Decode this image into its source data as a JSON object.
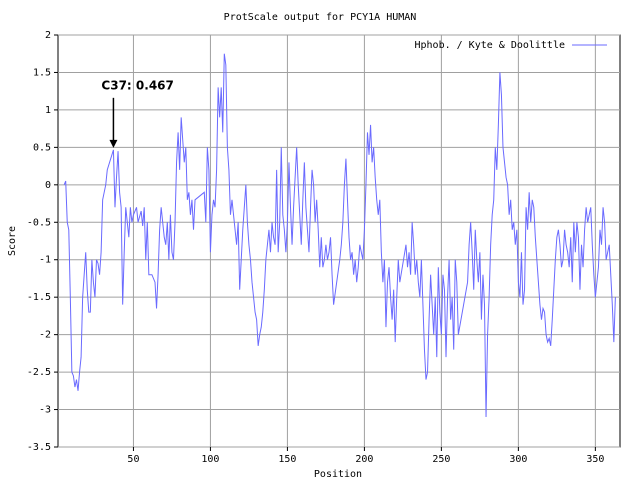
{
  "chart_data": {
    "type": "line",
    "title": "ProtScale output for PCY1A HUMAN",
    "xlabel": "Position",
    "ylabel": "Score",
    "xlim": [
      1,
      366
    ],
    "xticks": [
      50,
      100,
      150,
      200,
      250,
      300,
      350
    ],
    "ylim": [
      -3.5,
      2
    ],
    "yticks": [
      -3.5,
      -3,
      -2.5,
      -2,
      -1.5,
      -1,
      -0.5,
      0,
      0.5,
      1,
      1.5,
      2
    ],
    "grid": true,
    "legend": "top-right",
    "annotation": {
      "text": "C37: 0.467",
      "x": 37,
      "y": 0.467
    },
    "x": [
      5,
      6,
      7,
      8,
      9,
      10,
      11,
      12,
      13,
      14,
      15,
      16,
      17,
      18,
      19,
      20,
      21,
      22,
      23,
      24,
      25,
      26,
      27,
      28,
      29,
      30,
      31,
      32,
      33,
      37,
      38,
      39,
      40,
      41,
      42,
      43,
      44,
      45,
      46,
      47,
      48,
      49,
      50,
      52,
      53,
      55,
      56,
      57,
      58,
      59,
      60,
      62,
      64,
      65,
      66,
      67,
      68,
      69,
      70,
      71,
      72,
      73,
      74,
      75,
      76,
      77,
      78,
      79,
      80,
      81,
      82,
      83,
      84,
      85,
      86,
      87,
      88,
      89,
      90,
      96,
      97,
      98,
      99,
      100,
      101,
      102,
      103,
      104,
      105,
      106,
      107,
      108,
      109,
      110,
      111,
      112,
      113,
      114,
      115,
      116,
      117,
      118,
      119,
      120,
      121,
      122,
      123,
      124,
      125,
      126,
      127,
      128,
      129,
      130,
      131,
      132,
      133,
      134,
      135,
      136,
      137,
      138,
      139,
      140,
      141,
      142,
      143,
      144,
      145,
      146,
      147,
      148,
      149,
      150,
      151,
      152,
      153,
      154,
      155,
      156,
      157,
      158,
      159,
      160,
      161,
      162,
      163,
      164,
      165,
      166,
      167,
      168,
      169,
      170,
      171,
      172,
      173,
      174,
      175,
      176,
      177,
      178,
      179,
      180,
      184,
      185,
      186,
      187,
      188,
      189,
      190,
      191,
      192,
      193,
      194,
      195,
      196,
      197,
      198,
      199,
      200,
      201,
      202,
      203,
      204,
      205,
      206,
      207,
      208,
      209,
      210,
      211,
      212,
      213,
      214,
      215,
      216,
      217,
      218,
      219,
      220,
      221,
      222,
      223,
      227,
      228,
      229,
      230,
      231,
      232,
      233,
      234,
      235,
      236,
      237,
      238,
      239,
      240,
      241,
      242,
      243,
      244,
      245,
      246,
      247,
      248,
      249,
      250,
      251,
      252,
      253,
      254,
      255,
      256,
      257,
      258,
      259,
      260,
      261,
      267,
      268,
      269,
      270,
      271,
      272,
      273,
      274,
      275,
      276,
      277,
      278,
      279,
      280,
      281,
      282,
      283,
      284,
      285,
      286,
      287,
      288,
      289,
      290,
      291,
      292,
      293,
      294,
      295,
      296,
      297,
      298,
      299,
      300,
      301,
      302,
      303,
      304,
      305,
      306,
      307,
      308,
      309,
      310,
      311,
      312,
      313,
      314,
      315,
      316,
      317,
      318,
      319,
      320,
      321,
      322,
      323,
      324,
      325,
      326,
      327,
      328,
      329,
      330,
      331,
      332,
      333,
      334,
      335,
      336,
      337,
      338,
      339,
      340,
      341,
      342,
      343,
      344,
      345,
      346,
      347,
      348,
      349,
      350,
      351,
      352,
      353,
      354,
      355,
      356,
      357,
      358,
      359,
      360,
      361,
      362,
      363
    ],
    "series": [
      {
        "name": "Hphob. / Kyte & Doolittle",
        "color": "#6a6aff",
        "values": [
          0,
          0.05,
          -0.5,
          -0.6,
          -1.5,
          -2.5,
          -2.55,
          -2.7,
          -2.6,
          -2.75,
          -2.5,
          -2.3,
          -1.5,
          -1.2,
          -0.9,
          -1.4,
          -1.7,
          -1.7,
          -1,
          -1.3,
          -1.5,
          -1,
          -1.05,
          -1.2,
          -0.9,
          -0.2,
          -0.1,
          0,
          0.2,
          0.467,
          -0.3,
          0.1,
          0.45,
          -0.1,
          -0.3,
          -1.6,
          -0.9,
          -0.3,
          -0.5,
          -0.7,
          -0.3,
          -0.5,
          -0.4,
          -0.3,
          -0.5,
          -0.35,
          -0.55,
          -0.3,
          -1,
          -0.5,
          -1.2,
          -1.2,
          -1.3,
          -1.65,
          -1.2,
          -0.6,
          -0.3,
          -0.5,
          -0.7,
          -0.8,
          -0.5,
          -1,
          -0.4,
          -0.9,
          -1,
          -0.5,
          0.3,
          0.7,
          0.2,
          0.9,
          0.6,
          0.3,
          0.5,
          -0.2,
          -0.1,
          -0.4,
          -0.2,
          -0.6,
          -0.2,
          -0.1,
          -0.5,
          0.5,
          0.2,
          -0.9,
          -0.4,
          -0.2,
          -0.3,
          0.2,
          1.3,
          0.9,
          1.3,
          0.7,
          1.75,
          1.6,
          0.5,
          0.2,
          -0.4,
          -0.2,
          -0.4,
          -0.6,
          -0.8,
          -0.5,
          -1.4,
          -1,
          -0.6,
          -0.3,
          0,
          -0.5,
          -0.8,
          -1,
          -1.3,
          -1.5,
          -1.7,
          -1.8,
          -2.15,
          -2,
          -1.9,
          -1.7,
          -1.4,
          -1,
          -0.8,
          -0.6,
          -0.9,
          -0.5,
          -0.7,
          -0.8,
          0.2,
          -0.9,
          -0.5,
          0.5,
          -0.4,
          -0.6,
          -0.9,
          -0.5,
          0.3,
          -0.3,
          -0.8,
          -0.3,
          0.1,
          0.5,
          0,
          -0.4,
          -0.8,
          -0.2,
          0.3,
          -0.3,
          -0.6,
          -0.9,
          -0.3,
          0.2,
          0,
          -0.5,
          -0.2,
          -0.6,
          -1.1,
          -0.7,
          -1.1,
          -1,
          -0.8,
          -1,
          -0.9,
          -0.7,
          -1.2,
          -1.6,
          -1,
          -0.8,
          -0.5,
          0,
          0.35,
          -0.2,
          -0.7,
          -1,
          -0.9,
          -1.2,
          -1,
          -1.3,
          -1.1,
          -0.8,
          -0.9,
          -1,
          -0.6,
          0,
          0.7,
          0.4,
          0.8,
          0.3,
          0.5,
          0.1,
          -0.2,
          -0.4,
          -0.2,
          -0.9,
          -1.3,
          -1,
          -1.9,
          -1.3,
          -1.1,
          -1.5,
          -1.8,
          -1.4,
          -2.1,
          -1.5,
          -1,
          -1.3,
          -0.8,
          -1.1,
          -0.9,
          -1.2,
          -0.5,
          -0.8,
          -1.2,
          -1,
          -1.3,
          -1.5,
          -1,
          -1.6,
          -2.2,
          -2.6,
          -2.5,
          -1.8,
          -1.2,
          -1.6,
          -2,
          -1.5,
          -2.3,
          -1.1,
          -1.7,
          -2,
          -1.2,
          -1.4,
          -2.3,
          -1.5,
          -1,
          -1.8,
          -1.5,
          -2.2,
          -1,
          -1.3,
          -2,
          -1.3,
          -0.8,
          -0.5,
          -0.9,
          -1.4,
          -0.6,
          -1,
          -1.3,
          -0.9,
          -1.8,
          -1.2,
          -1.6,
          -3.1,
          -2,
          -1.5,
          -0.8,
          -0.4,
          -0.2,
          0.5,
          0.2,
          0.8,
          1.5,
          1.2,
          0.5,
          0.3,
          0.1,
          0,
          -0.4,
          -0.2,
          -0.6,
          -0.5,
          -0.8,
          -0.6,
          -1.3,
          -1.5,
          -0.9,
          -1.6,
          -1.4,
          -0.3,
          -0.6,
          -0.1,
          -0.5,
          -0.2,
          -0.3,
          -0.7,
          -1,
          -1.3,
          -1.6,
          -1.8,
          -1.65,
          -1.7,
          -2,
          -2.1,
          -2.05,
          -2.15,
          -1.8,
          -1.4,
          -1,
          -0.7,
          -0.6,
          -0.8,
          -1.1,
          -1,
          -0.6,
          -0.8,
          -0.9,
          -1.1,
          -0.7,
          -1.3,
          -0.5,
          -0.9,
          -0.5,
          -0.7,
          -1.4,
          -0.8,
          -1.1,
          -0.6,
          -0.3,
          -0.5,
          -0.4,
          -0.3,
          -0.8,
          -1.2,
          -1.5,
          -1.3,
          -1.1,
          -0.6,
          -0.8,
          -0.3,
          -0.5,
          -1,
          -0.9,
          -0.8,
          -1.2,
          -1.6,
          -2.1,
          -1.5
        ]
      }
    ]
  }
}
